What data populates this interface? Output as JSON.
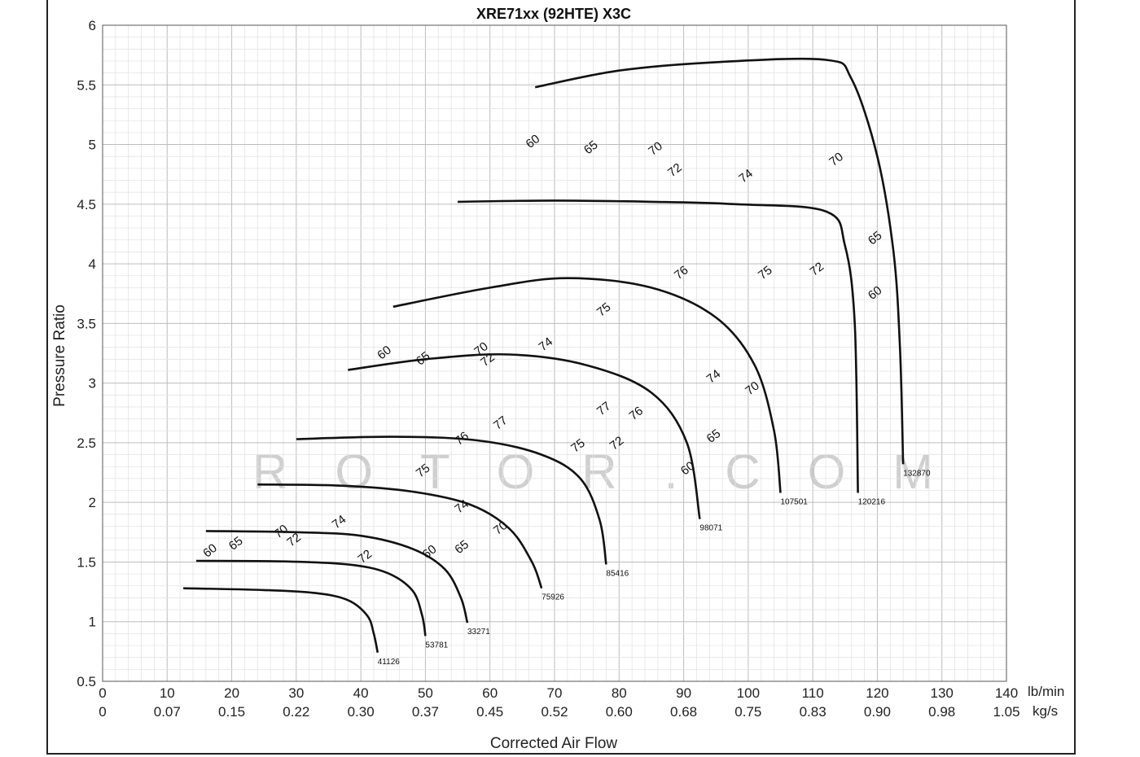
{
  "chart_data": {
    "type": "line",
    "title": "XRE71xx (92HTE) X3C",
    "xlabel": "Corrected Air Flow",
    "ylabel": "Pressure Ratio",
    "x_unit_primary": "lb/min",
    "x_unit_secondary": "kg/s",
    "xlim": [
      0,
      140
    ],
    "ylim": [
      0.5,
      6
    ],
    "grid": true,
    "x_ticks_primary": [
      "0",
      "10",
      "20",
      "30",
      "40",
      "50",
      "60",
      "70",
      "80",
      "90",
      "100",
      "110",
      "120",
      "130",
      "140"
    ],
    "x_ticks_secondary": [
      "0",
      "0.07",
      "0.15",
      "0.22",
      "0.30",
      "0.37",
      "0.45",
      "0.52",
      "0.60",
      "0.68",
      "0.75",
      "0.83",
      "0.90",
      "0.98",
      "1.05"
    ],
    "y_ticks": [
      "0.5",
      "1",
      "1.5",
      "2",
      "2.5",
      "3",
      "3.5",
      "4",
      "4.5",
      "5",
      "5.5",
      "6"
    ],
    "speed_lines": [
      {
        "label": "41126",
        "points": [
          [
            12.5,
            1.28
          ],
          [
            25,
            1.265
          ],
          [
            33,
            1.24
          ],
          [
            38,
            1.18
          ],
          [
            41,
            1.05
          ],
          [
            42,
            0.9
          ],
          [
            42.6,
            0.74
          ]
        ]
      },
      {
        "label": "53781",
        "points": [
          [
            14.5,
            1.51
          ],
          [
            28,
            1.505
          ],
          [
            38,
            1.48
          ],
          [
            44,
            1.41
          ],
          [
            48,
            1.26
          ],
          [
            49.5,
            1.05
          ],
          [
            50,
            0.88
          ]
        ]
      },
      {
        "label": "33271",
        "points": [
          [
            16,
            1.76
          ],
          [
            30,
            1.75
          ],
          [
            40,
            1.72
          ],
          [
            48,
            1.61
          ],
          [
            53,
            1.44
          ],
          [
            55.5,
            1.2
          ],
          [
            56.5,
            0.99
          ]
        ]
      },
      {
        "label": "75926",
        "points": [
          [
            24,
            2.15
          ],
          [
            37,
            2.14
          ],
          [
            48,
            2.09
          ],
          [
            57,
            1.98
          ],
          [
            63,
            1.78
          ],
          [
            66.5,
            1.5
          ],
          [
            68,
            1.28
          ]
        ]
      },
      {
        "label": "85416",
        "points": [
          [
            30,
            2.53
          ],
          [
            45,
            2.55
          ],
          [
            58,
            2.52
          ],
          [
            68,
            2.4
          ],
          [
            74,
            2.2
          ],
          [
            77,
            1.85
          ],
          [
            78,
            1.48
          ]
        ]
      },
      {
        "label": "98071",
        "points": [
          [
            38,
            3.11
          ],
          [
            50,
            3.2
          ],
          [
            63,
            3.24
          ],
          [
            75,
            3.15
          ],
          [
            85,
            2.92
          ],
          [
            90.5,
            2.5
          ],
          [
            92.5,
            1.86
          ]
        ]
      },
      {
        "label": "107501",
        "points": [
          [
            45,
            3.64
          ],
          [
            60,
            3.8
          ],
          [
            72,
            3.88
          ],
          [
            85,
            3.8
          ],
          [
            95,
            3.55
          ],
          [
            101,
            3.15
          ],
          [
            104,
            2.6
          ],
          [
            105,
            2.08
          ]
        ]
      },
      {
        "label": "120216",
        "points": [
          [
            55,
            4.52
          ],
          [
            70,
            4.53
          ],
          [
            85,
            4.52
          ],
          [
            98,
            4.5
          ],
          [
            112,
            4.44
          ],
          [
            115,
            4.15
          ],
          [
            116.5,
            3.5
          ],
          [
            117,
            2.08
          ]
        ]
      },
      {
        "label": "132870",
        "points": [
          [
            67,
            5.48
          ],
          [
            80,
            5.62
          ],
          [
            95,
            5.69
          ],
          [
            112,
            5.71
          ],
          [
            116,
            5.55
          ],
          [
            120,
            4.9
          ],
          [
            122.5,
            4.1
          ],
          [
            123.5,
            3.3
          ],
          [
            124,
            2.32
          ]
        ]
      }
    ],
    "efficiency_islands": [
      {
        "label": "60",
        "label_positions": [
          [
            67,
            5.0
          ],
          [
            44,
            3.23
          ],
          [
            17,
            1.57
          ],
          [
            51,
            1.56
          ],
          [
            91,
            2.26
          ],
          [
            120,
            3.73
          ]
        ]
      },
      {
        "label": "65",
        "label_positions": [
          [
            76,
            4.95
          ],
          [
            50,
            3.18
          ],
          [
            21,
            1.63
          ],
          [
            56,
            1.6
          ],
          [
            95,
            2.53
          ],
          [
            120,
            4.19
          ]
        ]
      },
      {
        "label": "70",
        "label_positions": [
          [
            86,
            4.94
          ],
          [
            59,
            3.26
          ],
          [
            28,
            1.73
          ],
          [
            62,
            1.76
          ],
          [
            101,
            2.93
          ],
          [
            114,
            4.85
          ]
        ]
      },
      {
        "label": "72",
        "label_positions": [
          [
            89,
            4.76
          ],
          [
            60,
            3.17
          ],
          [
            30,
            1.66
          ],
          [
            41,
            1.52
          ],
          [
            80,
            2.47
          ],
          [
            111,
            3.93
          ]
        ]
      },
      {
        "label": "74",
        "label_positions": [
          [
            100,
            4.71
          ],
          [
            69,
            3.3
          ],
          [
            37,
            1.81
          ],
          [
            56,
            1.94
          ],
          [
            95,
            3.03
          ]
        ]
      },
      {
        "label": "75",
        "label_positions": [
          [
            78,
            3.59
          ],
          [
            50,
            2.24
          ],
          [
            74,
            2.45
          ],
          [
            103,
            3.9
          ]
        ]
      },
      {
        "label": "76",
        "label_positions": [
          [
            90,
            3.9
          ],
          [
            56,
            2.51
          ],
          [
            83,
            2.72
          ]
        ]
      },
      {
        "label": "77",
        "label_positions": [
          [
            62,
            2.64
          ],
          [
            78,
            2.76
          ]
        ]
      }
    ],
    "watermark": "ROTOR.COM"
  }
}
